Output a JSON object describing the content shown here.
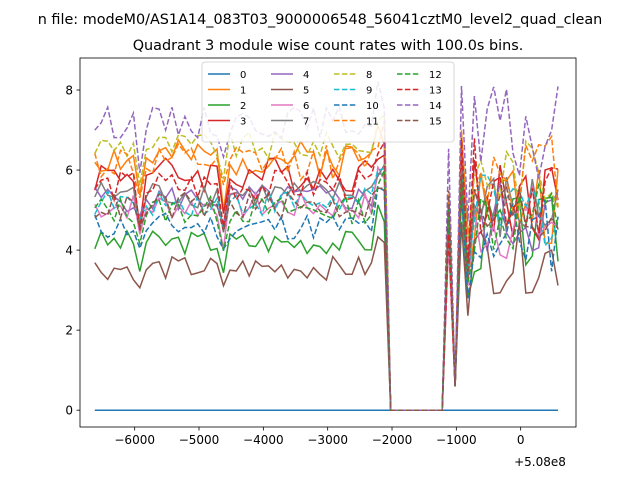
{
  "figure": {
    "suptitle": "n file: modeM0/AS1A14_083T03_9000006548_56041cztM0_level2_quad_clean",
    "title": "Quadrant 3 module wise count rates with 100.0s bins.",
    "x_offset_label": "+5.08e8"
  },
  "chart_data": {
    "type": "line",
    "title": "Quadrant 3 module wise count rates with 100.0s bins.",
    "xlabel": "",
    "ylabel": "",
    "x_offset": 508000000,
    "xlim": [
      -6850,
      860
    ],
    "ylim": [
      -0.42,
      8.8
    ],
    "xticks": [
      -6000,
      -5000,
      -4000,
      -3000,
      -2000,
      -1000,
      0
    ],
    "xtick_labels": [
      "−6000",
      "−5000",
      "−4000",
      "−3000",
      "−2000",
      "−1000",
      "0"
    ],
    "yticks": [
      0,
      2,
      4,
      6,
      8
    ],
    "ytick_labels": [
      "0",
      "2",
      "4",
      "6",
      "8"
    ],
    "legend_placement": "upper center",
    "legend_columns": 4,
    "gap_range": [
      -2050,
      -1150
    ],
    "series": [
      {
        "name": "0",
        "color": "#1f77b4",
        "dashed": false,
        "flat": true,
        "base": 0.0,
        "amp": 0.0,
        "post_base": 0.0,
        "post_amp": 0.0,
        "seed": 1
      },
      {
        "name": "1",
        "color": "#ff7f0e",
        "dashed": false,
        "base": 6.3,
        "amp": 0.45,
        "post_base": 5.2,
        "post_amp": 1.2,
        "seed": 2
      },
      {
        "name": "2",
        "color": "#2ca02c",
        "dashed": false,
        "base": 4.2,
        "amp": 0.3,
        "post_base": 4.4,
        "post_amp": 1.0,
        "seed": 3
      },
      {
        "name": "3",
        "color": "#d62728",
        "dashed": false,
        "base": 5.9,
        "amp": 0.45,
        "post_base": 5.3,
        "post_amp": 1.1,
        "seed": 4
      },
      {
        "name": "4",
        "color": "#9467bd",
        "dashed": false,
        "base": 5.3,
        "amp": 0.35,
        "post_base": 4.8,
        "post_amp": 1.0,
        "seed": 5
      },
      {
        "name": "5",
        "color": "#8c564b",
        "dashed": false,
        "base": 3.55,
        "amp": 0.3,
        "post_base": 3.8,
        "post_amp": 0.9,
        "seed": 6
      },
      {
        "name": "6",
        "color": "#e377c2",
        "dashed": false,
        "base": 5.1,
        "amp": 0.35,
        "post_base": 4.7,
        "post_amp": 1.0,
        "seed": 7
      },
      {
        "name": "7",
        "color": "#7f7f7f",
        "dashed": false,
        "base": 5.4,
        "amp": 0.35,
        "post_base": 5.0,
        "post_amp": 1.0,
        "seed": 8
      },
      {
        "name": "8",
        "color": "#bcbd22",
        "dashed": true,
        "base": 6.6,
        "amp": 0.35,
        "post_base": 5.9,
        "post_amp": 1.0,
        "seed": 9
      },
      {
        "name": "9",
        "color": "#17becf",
        "dashed": true,
        "base": 5.2,
        "amp": 0.35,
        "post_base": 5.0,
        "post_amp": 1.0,
        "seed": 10
      },
      {
        "name": "10",
        "color": "#1f77b4",
        "dashed": true,
        "base": 4.6,
        "amp": 0.35,
        "post_base": 4.4,
        "post_amp": 1.0,
        "seed": 11
      },
      {
        "name": "11",
        "color": "#ff7f0e",
        "dashed": true,
        "base": 6.2,
        "amp": 0.45,
        "post_base": 6.0,
        "post_amp": 1.0,
        "seed": 12
      },
      {
        "name": "12",
        "color": "#2ca02c",
        "dashed": true,
        "base": 5.0,
        "amp": 0.35,
        "post_base": 4.8,
        "post_amp": 1.0,
        "seed": 13
      },
      {
        "name": "13",
        "color": "#d62728",
        "dashed": true,
        "base": 5.6,
        "amp": 0.4,
        "post_base": 5.6,
        "post_amp": 1.2,
        "seed": 14
      },
      {
        "name": "14",
        "color": "#9467bd",
        "dashed": true,
        "base": 7.2,
        "amp": 0.4,
        "post_base": 6.8,
        "post_amp": 1.3,
        "seed": 15
      },
      {
        "name": "15",
        "color": "#8c564b",
        "dashed": true,
        "base": 5.1,
        "amp": 0.35,
        "post_base": 4.9,
        "post_amp": 1.0,
        "seed": 16
      }
    ]
  }
}
